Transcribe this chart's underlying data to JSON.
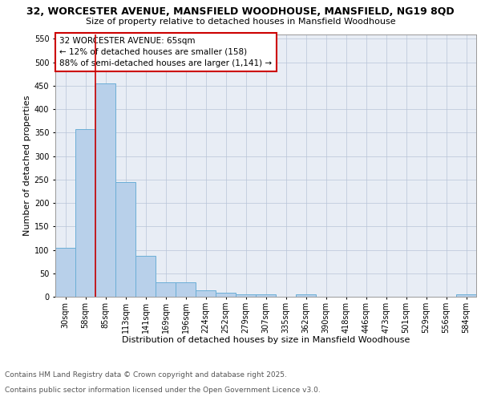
{
  "title_line1": "32, WORCESTER AVENUE, MANSFIELD WOODHOUSE, MANSFIELD, NG19 8QD",
  "title_line2": "Size of property relative to detached houses in Mansfield Woodhouse",
  "xlabel": "Distribution of detached houses by size in Mansfield Woodhouse",
  "ylabel": "Number of detached properties",
  "categories": [
    "30sqm",
    "58sqm",
    "85sqm",
    "113sqm",
    "141sqm",
    "169sqm",
    "196sqm",
    "224sqm",
    "252sqm",
    "279sqm",
    "307sqm",
    "335sqm",
    "362sqm",
    "390sqm",
    "418sqm",
    "446sqm",
    "473sqm",
    "501sqm",
    "529sqm",
    "556sqm",
    "584sqm"
  ],
  "values": [
    105,
    357,
    455,
    245,
    88,
    31,
    31,
    13,
    9,
    5,
    5,
    0,
    5,
    0,
    0,
    0,
    0,
    0,
    0,
    0,
    5
  ],
  "bar_color": "#b8d0ea",
  "bar_edge_color": "#6baed6",
  "vline_x": 1.5,
  "vline_color": "#cc0000",
  "annotation_text": "32 WORCESTER AVENUE: 65sqm\n← 12% of detached houses are smaller (158)\n88% of semi-detached houses are larger (1,141) →",
  "annotation_box_color": "#ffffff",
  "annotation_box_edge_color": "#cc0000",
  "ylim": [
    0,
    560
  ],
  "yticks": [
    0,
    50,
    100,
    150,
    200,
    250,
    300,
    350,
    400,
    450,
    500,
    550
  ],
  "plot_background": "#e8edf5",
  "footer_line1": "Contains HM Land Registry data © Crown copyright and database right 2025.",
  "footer_line2": "Contains public sector information licensed under the Open Government Licence v3.0.",
  "title_fontsize": 9,
  "subtitle_fontsize": 8,
  "xlabel_fontsize": 8,
  "ylabel_fontsize": 8,
  "tick_fontsize": 7,
  "annotation_fontsize": 7.5,
  "footer_fontsize": 6.5
}
